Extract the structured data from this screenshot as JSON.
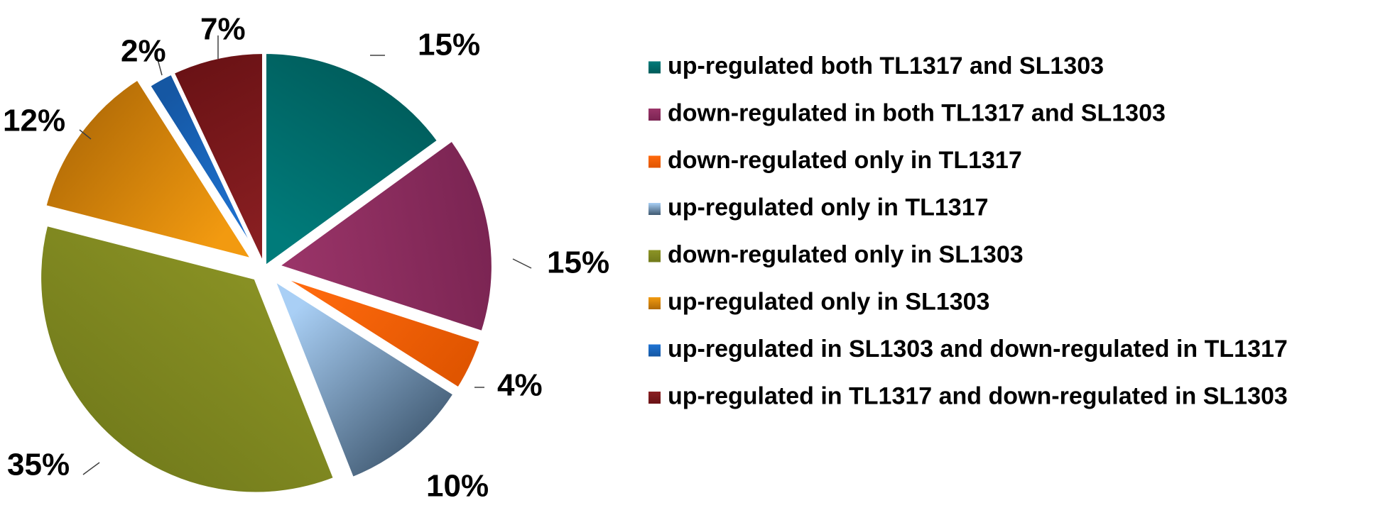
{
  "chart_data": {
    "type": "pie",
    "start_angle_deg": 0,
    "direction": "clockwise",
    "legend_position": "right",
    "slices": [
      {
        "label": "up-regulated both TL1317 and SL1303",
        "value": 15,
        "display": "15%",
        "color": "#007B7A",
        "color_dark": "#005a59",
        "exploded": false
      },
      {
        "label": "down-regulated in both TL1317 and SL1303",
        "value": 15,
        "display": "15%",
        "color": "#9B3569",
        "color_dark": "#7a2452",
        "exploded": true
      },
      {
        "label": "down-regulated only in TL1317",
        "value": 4,
        "display": "4%",
        "color": "#FF6A0E",
        "color_dark": "#e05500",
        "exploded": true
      },
      {
        "label": "up-regulated only in TL1317",
        "value": 10,
        "display": "10%",
        "color": "#A9CFF5",
        "color_dark": "#3f5870",
        "exploded": true
      },
      {
        "label": "down-regulated only in SL1303",
        "value": 35,
        "display": "35%",
        "color": "#8C9425",
        "color_dark": "#717a1b",
        "exploded": true
      },
      {
        "label": "up-regulated only in SL1303",
        "value": 12,
        "display": "12%",
        "color": "#F29A10",
        "color_dark": "#b06a06",
        "exploded": true
      },
      {
        "label": "up-regulated in SL1303 and down-regulated in TL1317",
        "value": 2,
        "display": "2%",
        "color": "#1F74D4",
        "color_dark": "#1557a3",
        "exploded": false
      },
      {
        "label": "up-regulated in TL1317 and down-regulated in SL1303",
        "value": 7,
        "display": "7%",
        "color": "#8A1F22",
        "color_dark": "#6a1215",
        "exploded": false
      }
    ]
  }
}
